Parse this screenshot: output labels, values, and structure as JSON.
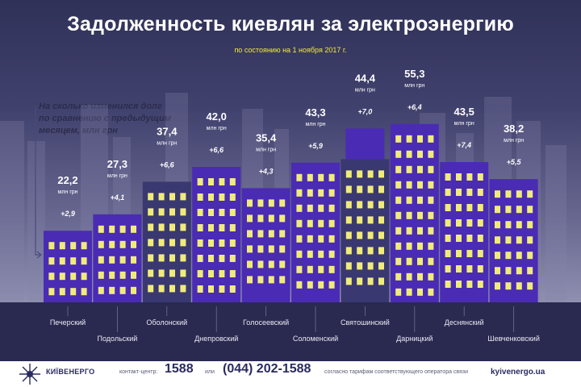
{
  "header": {
    "title": "Задолженность киевлян за электроэнергию",
    "subtitle": "по состоянию на 1 ноября 2017 г."
  },
  "note": {
    "line1": "На сколько изменился долг",
    "line2": "по сравнению с предыдущим",
    "line3": "месяцем, млн грн"
  },
  "chart_data": {
    "type": "bar",
    "title": "Задолженность киевлян за электроэнергию",
    "subtitle": "по состоянию на 1 ноября 2017 г.",
    "categories": [
      "Печерский",
      "Подольский",
      "Оболонский",
      "Днепровский",
      "Голосеевский",
      "Соломенский",
      "Святошинский",
      "Дарницкий",
      "Деснянский",
      "Шевченковский"
    ],
    "value_labels": [
      "22,2",
      "27,3",
      "37,4",
      "42,0",
      "35,4",
      "43,3",
      "44,4",
      "55,3",
      "43,5",
      "38,2"
    ],
    "values": [
      22.2,
      27.3,
      37.4,
      42.0,
      35.4,
      43.3,
      44.4,
      55.3,
      43.5,
      38.2
    ],
    "unit": "млн грн",
    "change_labels": [
      "+2,9",
      "+4,1",
      "+6,6",
      "+6,6",
      "+4,3",
      "+5,9",
      "+7,0",
      "+6,4",
      "+7,4",
      "+5,5"
    ],
    "changes": [
      2.9,
      4.1,
      6.6,
      6.6,
      4.3,
      5.9,
      7.0,
      6.4,
      7.4,
      5.5
    ],
    "xlabel": "",
    "ylabel": ""
  },
  "colors": {
    "building_main": "#4a2bb4",
    "building_alt": "#3a3870",
    "window": "#f0ec7a",
    "value_text": "#ffffff",
    "change_text": "#ffffff"
  },
  "footer": {
    "brand": "КИЇВЕНЕРГО",
    "contact_label": "контакт-центр:",
    "phone_short": "1588",
    "or_label": "или",
    "phone_long": "(044) 202-1588",
    "tariff_note": "согласно тарифам соответствующего оператора связи",
    "site": "kyivenergo.ua"
  }
}
